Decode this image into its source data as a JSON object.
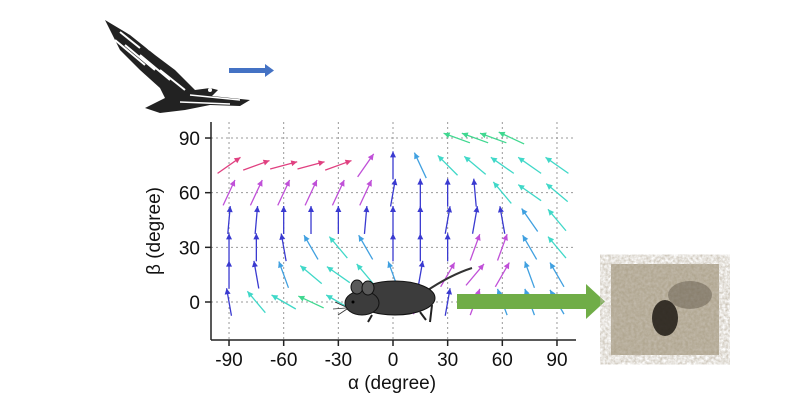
{
  "chart_data": {
    "type": "quiver",
    "xlabel": "α (degree)",
    "ylabel": "β (degree)",
    "xlim": [
      -100,
      100
    ],
    "ylim": [
      -20,
      100
    ],
    "xticks": [
      "-90",
      "-60",
      "-30",
      "0",
      "30",
      "60",
      "90"
    ],
    "yticks": [
      "0",
      "30",
      "60",
      "90"
    ],
    "grid": true,
    "alpha_values": [
      -90,
      -75,
      -60,
      -45,
      -30,
      -15,
      0,
      15,
      30,
      45,
      60,
      75,
      90
    ],
    "beta_values": [
      0,
      15,
      30,
      45,
      60,
      75
    ],
    "arrow_tilt_from_vertical_deg": [
      [
        -10,
        -40,
        -60,
        -65,
        -60,
        -50,
        -30,
        30,
        10,
        20,
        -20,
        -20,
        -30
      ],
      [
        0,
        -10,
        -20,
        -50,
        -55,
        -40,
        -20,
        10,
        30,
        40,
        30,
        -20,
        -30
      ],
      [
        0,
        0,
        -10,
        -30,
        -40,
        -30,
        0,
        0,
        0,
        20,
        20,
        -30,
        -40
      ],
      [
        5,
        5,
        0,
        0,
        0,
        5,
        0,
        0,
        10,
        10,
        -10,
        -35,
        -40
      ],
      [
        25,
        25,
        25,
        25,
        25,
        25,
        10,
        0,
        0,
        -5,
        -40,
        -55,
        -50
      ],
      [
        55,
        70,
        75,
        75,
        70,
        35,
        0,
        -25,
        -45,
        -50,
        -55,
        -55,
        -55
      ]
    ],
    "extra_row": {
      "beta": 90,
      "alpha_values": [
        35,
        45,
        55,
        65
      ],
      "tilt": [
        -70,
        -70,
        -70,
        -65
      ]
    },
    "colors": {
      "right_tilt": "#e04080",
      "right": "#c050d8",
      "vertical": "#3a3ad0",
      "left": "#40a0e0",
      "left_strong": "#40d8c8",
      "horizontal_left": "#40d890"
    }
  },
  "figure": {
    "predator_direction_arrow_color": "#4472c4",
    "escape_arrow_color": "#70ad47",
    "icons": [
      "eagle-illustration",
      "mouse-illustration",
      "burrow-photo"
    ]
  }
}
